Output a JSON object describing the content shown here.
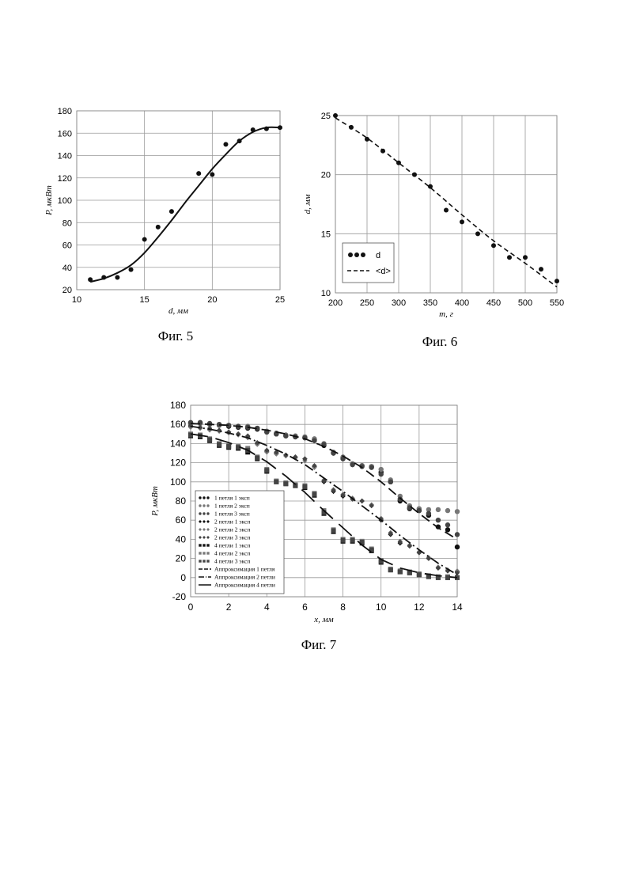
{
  "chart_data": [
    {
      "type": "scatter",
      "caption": "Фиг. 5",
      "xlabel": "d, мм",
      "ylabel": "P, мкВт",
      "xlim": [
        10,
        25
      ],
      "ylim": [
        20,
        180
      ],
      "xticks": [
        10,
        15,
        20,
        25
      ],
      "yticks": [
        20,
        40,
        60,
        80,
        100,
        120,
        140,
        160,
        180
      ],
      "grid": true,
      "series": [
        {
          "style": "points",
          "x": [
            11,
            12,
            13,
            14,
            15,
            16,
            17,
            19,
            20,
            21,
            22,
            23,
            24,
            25
          ],
          "y": [
            29,
            31,
            31,
            38,
            65,
            76,
            90,
            124,
            123,
            150,
            153,
            163,
            164,
            165
          ]
        },
        {
          "style": "line",
          "x": [
            11,
            12,
            13,
            14,
            15,
            16,
            17,
            18,
            19,
            20,
            21,
            22,
            23,
            24,
            25
          ],
          "y": [
            27,
            30,
            35,
            42,
            53,
            67,
            82,
            98,
            113,
            128,
            141,
            153,
            161,
            165,
            165
          ]
        }
      ]
    },
    {
      "type": "scatter",
      "caption": "Фиг. 6",
      "xlabel": "m, г",
      "ylabel": "d, мм",
      "xlim": [
        200,
        550
      ],
      "ylim": [
        10,
        25
      ],
      "xticks": [
        200,
        250,
        300,
        350,
        400,
        450,
        500,
        550
      ],
      "yticks": [
        10,
        15,
        20,
        25
      ],
      "grid": true,
      "legend_position": "bottom-left",
      "series": [
        {
          "name": "d",
          "style": "points",
          "x": [
            200,
            225,
            250,
            275,
            300,
            325,
            350,
            375,
            400,
            425,
            450,
            475,
            500,
            525,
            550
          ],
          "y": [
            25,
            24,
            23,
            22,
            21,
            20,
            19,
            17,
            16,
            15,
            14,
            13,
            13,
            12,
            11
          ]
        },
        {
          "name": "<d>",
          "style": "dashed",
          "x": [
            200,
            250,
            300,
            350,
            400,
            450,
            500,
            550
          ],
          "y": [
            24.8,
            23.1,
            21.0,
            18.9,
            16.6,
            14.4,
            12.5,
            10.5
          ]
        }
      ]
    },
    {
      "type": "scatter",
      "caption": "Фиг. 7",
      "xlabel": "x, мм",
      "ylabel": "P, мкВт",
      "xlim": [
        0,
        14
      ],
      "ylim": [
        -20,
        180
      ],
      "xticks": [
        0,
        2,
        4,
        6,
        8,
        10,
        12,
        14
      ],
      "yticks": [
        -20,
        0,
        20,
        40,
        60,
        80,
        100,
        120,
        140,
        160,
        180
      ],
      "grid": true,
      "legend_position": "bottom-left",
      "series": [
        {
          "name": "1 петля 1 эксп",
          "marker": "circle",
          "color": "#111111",
          "x": [
            0,
            0.5,
            1,
            1.5,
            2,
            2.5,
            3,
            3.5,
            4,
            4.5,
            5,
            5.5,
            6,
            6.5,
            7,
            7.5,
            8,
            8.5,
            9,
            9.5,
            10,
            10.5,
            11,
            11.5,
            12,
            12.5,
            13,
            13.5,
            14
          ],
          "y": [
            161,
            161,
            160,
            159,
            158,
            157,
            156,
            155,
            152,
            150,
            148,
            147,
            146,
            144,
            138,
            130,
            125,
            118,
            117,
            116,
            110,
            100,
            80,
            72,
            70,
            65,
            53,
            50,
            32
          ]
        },
        {
          "name": "1 петля 2 эксп",
          "marker": "circle",
          "color": "#777777",
          "x": [
            0,
            0.5,
            1,
            1.5,
            2,
            2.5,
            3,
            3.5,
            4,
            4.5,
            5,
            5.5,
            6,
            6.5,
            7,
            7.5,
            8,
            8.5,
            9,
            9.5,
            10,
            10.5,
            11,
            11.5,
            12,
            12.5,
            13,
            13.5,
            14
          ],
          "y": [
            160,
            161,
            160,
            159,
            159,
            158,
            158,
            156,
            153,
            151,
            149,
            148,
            147,
            145,
            140,
            131,
            126,
            119,
            117,
            116,
            113,
            102,
            85,
            75,
            72,
            71,
            71,
            70,
            69
          ]
        },
        {
          "name": "1 петля 3 эксп",
          "marker": "circle",
          "color": "#444444",
          "x": [
            0,
            0.5,
            1,
            1.5,
            2,
            2.5,
            3,
            3.5,
            4,
            4.5,
            5,
            5.5,
            6,
            6.5,
            7,
            7.5,
            8,
            8.5,
            9,
            9.5,
            10,
            10.5,
            11,
            11.5,
            12,
            12.5,
            13,
            13.5,
            14
          ],
          "y": [
            162,
            162,
            161,
            160,
            159,
            158,
            157,
            156,
            152,
            150,
            148,
            147,
            146,
            143,
            139,
            130,
            124,
            118,
            116,
            115,
            108,
            100,
            82,
            73,
            70,
            67,
            60,
            55,
            45
          ]
        },
        {
          "name": "2 петли 1 эксп",
          "marker": "diamond",
          "color": "#111111",
          "x": [
            0,
            0.5,
            1,
            1.5,
            2,
            2.5,
            3,
            3.5,
            4,
            4.5,
            5,
            5.5,
            6,
            6.5,
            7,
            7.5,
            8,
            8.5,
            9,
            9.5,
            10,
            10.5,
            11,
            11.5,
            12,
            12.5,
            13,
            13.5,
            14
          ],
          "y": [
            158,
            156,
            155,
            153,
            152,
            150,
            147,
            140,
            132,
            130,
            128,
            126,
            124,
            116,
            100,
            90,
            85,
            82,
            80,
            76,
            60,
            45,
            36,
            33,
            26,
            20,
            10,
            7,
            6
          ]
        },
        {
          "name": "2 петли 2 эксп",
          "marker": "diamond",
          "color": "#777777",
          "x": [
            0,
            0.5,
            1,
            1.5,
            2,
            2.5,
            3,
            3.5,
            4,
            4.5,
            5,
            5.5,
            6,
            6.5,
            7,
            7.5,
            8,
            8.5,
            9,
            9.5,
            10,
            10.5,
            11,
            11.5,
            12,
            12.5,
            13,
            13.5,
            14
          ],
          "y": [
            157,
            156,
            154,
            153,
            151,
            149,
            146,
            139,
            131,
            129,
            127,
            125,
            122,
            115,
            102,
            92,
            87,
            83,
            80,
            76,
            62,
            47,
            38,
            34,
            27,
            21,
            11,
            8,
            7
          ]
        },
        {
          "name": "2 петли 3 эксп",
          "marker": "diamond",
          "color": "#444444",
          "x": [
            0,
            0.5,
            1,
            1.5,
            2,
            2.5,
            3,
            3.5,
            4,
            4.5,
            5,
            5.5,
            6,
            6.5,
            7,
            7.5,
            8,
            8.5,
            9,
            9.5,
            10,
            10.5,
            11,
            11.5,
            12,
            12.5,
            13,
            13.5,
            14
          ],
          "y": [
            159,
            157,
            156,
            154,
            152,
            150,
            148,
            141,
            133,
            131,
            128,
            126,
            124,
            117,
            101,
            91,
            86,
            82,
            80,
            75,
            61,
            46,
            37,
            33,
            26,
            20,
            10,
            7,
            5
          ]
        },
        {
          "name": "4 петли 1 эксп",
          "marker": "square",
          "color": "#111111",
          "x": [
            0,
            0.5,
            1,
            1.5,
            2,
            2.5,
            3,
            3.5,
            4,
            4.5,
            5,
            5.5,
            6,
            6.5,
            7,
            7.5,
            8,
            8.5,
            9,
            9.5,
            10,
            10.5,
            11,
            11.5,
            12,
            12.5,
            13,
            13.5,
            14
          ],
          "y": [
            148,
            147,
            143,
            138,
            136,
            135,
            131,
            124,
            111,
            100,
            98,
            96,
            94,
            86,
            67,
            48,
            38,
            38,
            36,
            28,
            16,
            8,
            6,
            5,
            3,
            1,
            0,
            0,
            0
          ]
        },
        {
          "name": "4 петли 2 эксп",
          "marker": "square",
          "color": "#777777",
          "x": [
            0,
            0.5,
            1,
            1.5,
            2,
            2.5,
            3,
            3.5,
            4,
            4.5,
            5,
            5.5,
            6,
            6.5,
            7,
            7.5,
            8,
            8.5,
            9,
            9.5,
            10,
            10.5,
            11,
            11.5,
            12,
            12.5,
            13,
            13.5,
            14
          ],
          "y": [
            150,
            149,
            145,
            140,
            138,
            137,
            135,
            126,
            113,
            101,
            99,
            97,
            96,
            88,
            70,
            50,
            40,
            40,
            38,
            30,
            18,
            9,
            7,
            6,
            4,
            2,
            1,
            1,
            0
          ]
        },
        {
          "name": "4 петли 3 эксп",
          "marker": "square",
          "color": "#444444",
          "x": [
            0,
            0.5,
            1,
            1.5,
            2,
            2.5,
            3,
            3.5,
            4,
            4.5,
            5,
            5.5,
            6,
            6.5,
            7,
            7.5,
            8,
            8.5,
            9,
            9.5,
            10,
            10.5,
            11,
            11.5,
            12,
            12.5,
            13,
            13.5,
            14
          ],
          "y": [
            149,
            148,
            144,
            139,
            137,
            136,
            133,
            125,
            112,
            100,
            98,
            96,
            95,
            87,
            68,
            49,
            39,
            39,
            37,
            29,
            17,
            8,
            6,
            5,
            3,
            1,
            0,
            0,
            0
          ]
        },
        {
          "name": "Аппроксимация 1 петля",
          "style": "dash-long",
          "color": "#111111",
          "x": [
            0,
            1,
            2,
            3,
            4,
            5,
            6,
            7,
            8,
            9,
            10,
            11,
            12,
            13,
            14
          ],
          "y": [
            161,
            160,
            159,
            157,
            154,
            150,
            145,
            137,
            127,
            115,
            100,
            83,
            67,
            52,
            40
          ]
        },
        {
          "name": "Аппроксимация 2 петли",
          "style": "dash-dot",
          "color": "#111111",
          "x": [
            0,
            1,
            2,
            3,
            4,
            5,
            6,
            7,
            8,
            9,
            10,
            11,
            12,
            13,
            14
          ],
          "y": [
            158,
            155,
            151,
            146,
            138,
            129,
            118,
            104,
            90,
            75,
            60,
            44,
            29,
            15,
            3
          ]
        },
        {
          "name": "Аппроксимация 4 петли",
          "style": "solid-segments",
          "color": "#111111",
          "x": [
            0,
            1,
            2,
            3,
            4,
            5,
            6,
            7,
            8,
            9,
            10,
            11,
            12,
            13,
            14
          ],
          "y": [
            150,
            147,
            141,
            133,
            121,
            106,
            89,
            70,
            52,
            34,
            19,
            10,
            5,
            2,
            0
          ]
        }
      ]
    }
  ]
}
